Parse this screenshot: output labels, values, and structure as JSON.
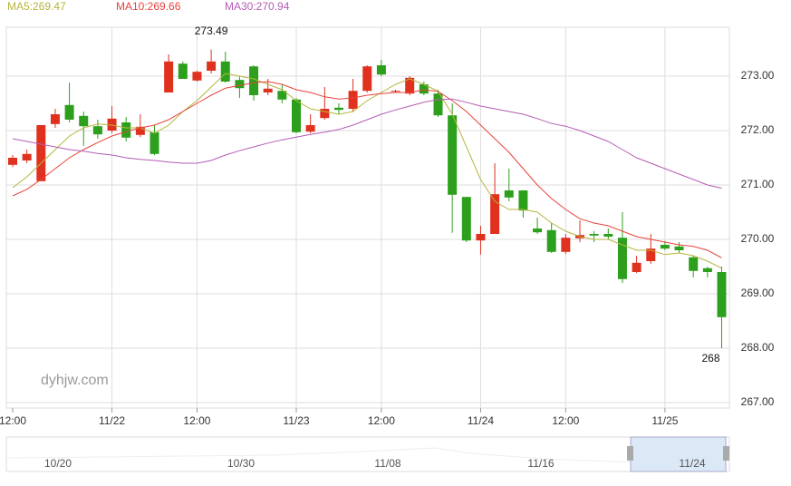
{
  "chart_data": {
    "type": "candlestick",
    "categories": [
      "12:00",
      null,
      null,
      null,
      null,
      null,
      null,
      "11/22",
      null,
      null,
      null,
      null,
      null,
      "12:00",
      null,
      null,
      null,
      null,
      null,
      null,
      "11/23",
      null,
      null,
      null,
      null,
      null,
      "12:00",
      null,
      null,
      null,
      null,
      null,
      null,
      "11/24",
      null,
      null,
      null,
      null,
      null,
      "12:00",
      null,
      null,
      null,
      null,
      null,
      null,
      "11/25",
      null,
      null,
      null,
      null
    ],
    "open": [
      271.37,
      271.45,
      271.07,
      272.12,
      272.47,
      272.27,
      272.08,
      272.0,
      272.15,
      271.92,
      271.97,
      272.7,
      273.23,
      272.92,
      273.1,
      273.27,
      272.93,
      273.18,
      272.7,
      272.73,
      272.57,
      271.98,
      272.23,
      272.42,
      272.4,
      272.73,
      273.2,
      272.72,
      272.68,
      272.85,
      272.68,
      272.28,
      270.78,
      269.98,
      270.1,
      270.9,
      270.9,
      270.2,
      270.17,
      269.77,
      270.02,
      270.1,
      270.1,
      270.03,
      269.4,
      269.6,
      269.9,
      269.87,
      269.67,
      269.47,
      269.4
    ],
    "high": [
      271.55,
      271.65,
      272.1,
      272.4,
      272.88,
      272.35,
      272.2,
      272.45,
      272.25,
      272.3,
      272.1,
      273.4,
      273.27,
      273.1,
      273.49,
      273.45,
      273.0,
      273.2,
      272.95,
      272.85,
      272.6,
      272.3,
      272.8,
      272.5,
      272.95,
      273.2,
      273.3,
      272.75,
      273.0,
      272.9,
      272.75,
      272.5,
      270.78,
      270.25,
      271.4,
      271.3,
      270.9,
      270.4,
      270.3,
      270.1,
      270.35,
      270.15,
      270.2,
      270.5,
      269.7,
      270.1,
      269.97,
      269.95,
      269.7,
      269.5,
      269.5
    ],
    "low": [
      271.33,
      271.4,
      271.07,
      272.05,
      272.15,
      271.72,
      271.85,
      271.95,
      271.8,
      271.88,
      271.55,
      272.7,
      272.95,
      272.9,
      273.05,
      272.88,
      272.6,
      272.55,
      272.65,
      272.5,
      271.95,
      271.95,
      272.2,
      272.3,
      272.35,
      272.7,
      273.0,
      272.7,
      272.65,
      272.65,
      272.25,
      270.12,
      269.95,
      269.72,
      270.1,
      270.7,
      270.4,
      270.1,
      269.75,
      269.73,
      269.95,
      269.95,
      270.0,
      269.2,
      269.38,
      269.55,
      269.8,
      269.75,
      269.3,
      269.3,
      268.0
    ],
    "close": [
      271.5,
      271.57,
      272.1,
      272.3,
      272.2,
      272.08,
      271.93,
      272.22,
      271.87,
      272.07,
      271.57,
      273.27,
      272.95,
      273.08,
      273.27,
      272.9,
      272.78,
      272.65,
      272.77,
      272.57,
      271.97,
      272.1,
      272.4,
      272.38,
      272.73,
      273.18,
      273.03,
      272.73,
      272.97,
      272.68,
      272.28,
      270.82,
      269.98,
      270.1,
      270.83,
      270.77,
      270.53,
      270.13,
      269.77,
      270.03,
      270.08,
      270.07,
      270.05,
      269.27,
      269.57,
      269.83,
      269.83,
      269.8,
      269.42,
      269.4,
      268.57
    ],
    "up_color": "#e0301e",
    "down_color": "#2ca01c",
    "series": [
      {
        "name": "MA5:269.47",
        "color": "#b5b53c",
        "values": [
          270.95,
          271.15,
          271.4,
          271.65,
          271.9,
          272.05,
          272.12,
          272.1,
          272.05,
          272.05,
          271.95,
          272.1,
          272.35,
          272.55,
          272.8,
          273.05,
          273.0,
          272.95,
          272.85,
          272.75,
          272.55,
          272.4,
          272.35,
          272.3,
          272.35,
          272.55,
          272.7,
          272.85,
          272.95,
          272.85,
          272.72,
          272.3,
          271.7,
          271.1,
          270.7,
          270.55,
          270.55,
          270.5,
          270.3,
          270.15,
          270.05,
          270.0,
          270.0,
          269.9,
          269.8,
          269.8,
          269.72,
          269.75,
          269.7,
          269.6,
          269.47
        ]
      },
      {
        "name": "MA10:269.66",
        "color": "#e8423a",
        "values": [
          270.8,
          270.92,
          271.1,
          271.3,
          271.5,
          271.65,
          271.78,
          271.9,
          271.98,
          272.05,
          272.1,
          272.2,
          272.35,
          272.5,
          272.65,
          272.78,
          272.83,
          272.88,
          272.9,
          272.85,
          272.75,
          272.7,
          272.62,
          272.58,
          272.6,
          272.65,
          272.68,
          272.7,
          272.7,
          272.75,
          272.72,
          272.55,
          272.35,
          272.1,
          271.85,
          271.6,
          271.3,
          271.0,
          270.75,
          270.55,
          270.38,
          270.3,
          270.25,
          270.15,
          270.05,
          270.0,
          269.95,
          269.9,
          269.87,
          269.8,
          269.66
        ]
      },
      {
        "name": "MA30:270.94",
        "color": "#b45cb4",
        "values": [
          271.85,
          271.8,
          271.75,
          271.7,
          271.65,
          271.62,
          271.58,
          271.55,
          271.5,
          271.47,
          271.45,
          271.42,
          271.4,
          271.4,
          271.45,
          271.55,
          271.63,
          271.7,
          271.77,
          271.83,
          271.88,
          271.93,
          271.97,
          272.02,
          272.1,
          272.2,
          272.3,
          272.38,
          272.45,
          272.52,
          272.57,
          272.58,
          272.52,
          272.45,
          272.4,
          272.35,
          272.3,
          272.22,
          272.13,
          272.08,
          272.0,
          271.9,
          271.8,
          271.65,
          271.5,
          271.4,
          271.3,
          271.2,
          271.1,
          271.0,
          270.94
        ]
      }
    ],
    "ylim": [
      266.9,
      273.9
    ],
    "yticks": [
      {
        "value": 267,
        "label": "267.00"
      },
      {
        "value": 268,
        "label": "268.00"
      },
      {
        "value": 269,
        "label": "269.00"
      },
      {
        "value": 270,
        "label": "270.00"
      },
      {
        "value": 271,
        "label": "271.00"
      },
      {
        "value": 272,
        "label": "272.00"
      },
      {
        "value": 273,
        "label": "273.00"
      }
    ],
    "grid": true,
    "max_label": "273.49",
    "min_label": "268",
    "watermark": "dyhjw.com",
    "navigator_labels": [
      "10/20",
      "10/30",
      "11/08",
      "11/16",
      "11/24"
    ]
  }
}
